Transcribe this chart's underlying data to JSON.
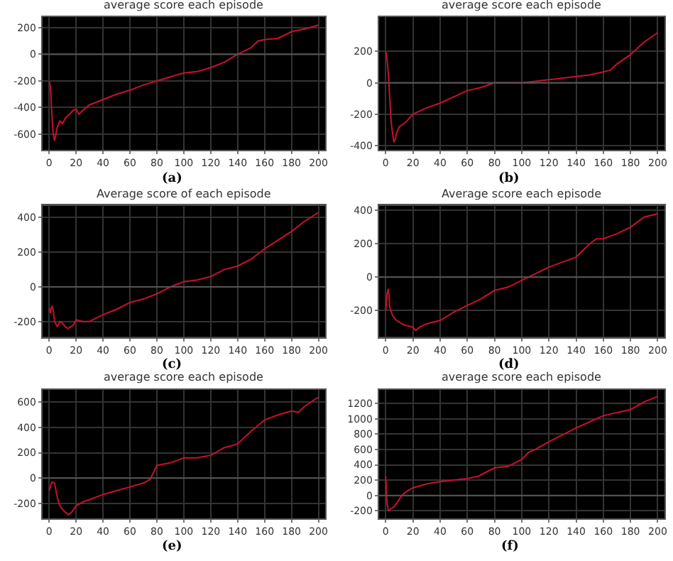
{
  "chart_data": [
    {
      "type": "line",
      "title": "average score each episode",
      "annotations": [
        "(a)"
      ],
      "x": [
        0,
        1,
        2,
        3,
        4,
        5,
        6,
        8,
        10,
        12,
        15,
        18,
        20,
        22,
        25,
        30,
        40,
        50,
        60,
        70,
        80,
        90,
        100,
        110,
        120,
        130,
        140,
        150,
        155,
        160,
        170,
        180,
        190,
        200
      ],
      "series": [
        {
          "color": "#c8102e",
          "values": [
            -200,
            -250,
            -450,
            -600,
            -650,
            -600,
            -550,
            -500,
            -520,
            -480,
            -450,
            -420,
            -410,
            -450,
            -420,
            -380,
            -340,
            -300,
            -270,
            -230,
            -200,
            -170,
            -140,
            -130,
            -100,
            -60,
            0,
            50,
            100,
            110,
            120,
            170,
            190,
            220
          ]
        }
      ],
      "xlim": [
        -5,
        205
      ],
      "ylim": [
        -720,
        280
      ],
      "xticks": [
        0,
        20,
        40,
        60,
        80,
        100,
        120,
        140,
        160,
        180,
        200
      ],
      "yticks": [
        -600,
        -400,
        -200,
        0,
        200
      ],
      "grid": true,
      "ref_lines": [
        {
          "axis": "y",
          "value": 0,
          "color": "#555555"
        }
      ]
    },
    {
      "type": "line",
      "title": "average score each episode",
      "annotations": [
        "(b)"
      ],
      "x": [
        0,
        1,
        2,
        3,
        4,
        5,
        6,
        7,
        8,
        10,
        15,
        20,
        25,
        30,
        40,
        50,
        60,
        70,
        80,
        90,
        100,
        110,
        120,
        130,
        140,
        150,
        160,
        165,
        170,
        180,
        190,
        200
      ],
      "series": [
        {
          "color": "#c8102e",
          "values": [
            200,
            150,
            50,
            -100,
            -250,
            -320,
            -380,
            -360,
            -320,
            -280,
            -250,
            -200,
            -180,
            -160,
            -130,
            -90,
            -50,
            -30,
            0,
            0,
            0,
            10,
            20,
            30,
            40,
            50,
            70,
            80,
            120,
            180,
            260,
            320
          ]
        }
      ],
      "xlim": [
        -5,
        205
      ],
      "ylim": [
        -430,
        420
      ],
      "xticks": [
        0,
        20,
        40,
        60,
        80,
        100,
        120,
        140,
        160,
        180,
        200
      ],
      "yticks": [
        -400,
        -200,
        0,
        200
      ],
      "grid": true,
      "ref_lines": [
        {
          "axis": "y",
          "value": 0,
          "color": "#555555"
        }
      ]
    },
    {
      "type": "line",
      "title": "Average score of each episode",
      "annotations": [
        "(c)"
      ],
      "x": [
        0,
        1,
        2,
        3,
        4,
        6,
        8,
        10,
        12,
        14,
        18,
        20,
        25,
        30,
        35,
        40,
        50,
        60,
        70,
        80,
        90,
        100,
        110,
        120,
        130,
        140,
        150,
        160,
        170,
        180,
        190,
        200
      ],
      "series": [
        {
          "color": "#c8102e",
          "values": [
            -120,
            -150,
            -110,
            -130,
            -200,
            -230,
            -200,
            -210,
            -230,
            -240,
            -220,
            -190,
            -200,
            -200,
            -180,
            -160,
            -130,
            -90,
            -70,
            -40,
            0,
            30,
            40,
            60,
            100,
            120,
            160,
            220,
            270,
            320,
            380,
            430
          ]
        }
      ],
      "xlim": [
        -5,
        205
      ],
      "ylim": [
        -290,
        470
      ],
      "xticks": [
        0,
        20,
        40,
        60,
        80,
        100,
        120,
        140,
        160,
        180,
        200
      ],
      "yticks": [
        -200,
        0,
        200,
        400
      ],
      "grid": true,
      "ref_lines": [
        {
          "axis": "y",
          "value": 0,
          "color": "#555555"
        }
      ]
    },
    {
      "type": "line",
      "title": "Average score each episode",
      "annotations": [
        "(d)"
      ],
      "x": [
        0,
        1,
        2,
        3,
        5,
        8,
        10,
        12,
        15,
        20,
        22,
        25,
        30,
        40,
        50,
        60,
        70,
        80,
        90,
        100,
        110,
        120,
        130,
        140,
        150,
        155,
        160,
        170,
        180,
        190,
        200
      ],
      "series": [
        {
          "color": "#c8102e",
          "values": [
            -200,
            -100,
            -70,
            -180,
            -230,
            -260,
            -270,
            -280,
            -290,
            -300,
            -320,
            -300,
            -280,
            -260,
            -210,
            -170,
            -130,
            -80,
            -60,
            -20,
            20,
            60,
            90,
            120,
            200,
            230,
            230,
            260,
            300,
            360,
            380
          ]
        }
      ],
      "xlim": [
        -5,
        205
      ],
      "ylim": [
        -360,
        430
      ],
      "xticks": [
        0,
        20,
        40,
        60,
        80,
        100,
        120,
        140,
        160,
        180,
        200
      ],
      "yticks": [
        -200,
        0,
        200,
        400
      ],
      "grid": true,
      "ref_lines": [
        {
          "axis": "y",
          "value": 0,
          "color": "#555555"
        }
      ]
    },
    {
      "type": "line",
      "title": "average score each episode",
      "annotations": [
        "(e)"
      ],
      "x": [
        0,
        2,
        4,
        6,
        8,
        10,
        14,
        16,
        20,
        25,
        30,
        40,
        50,
        60,
        70,
        75,
        80,
        90,
        100,
        110,
        120,
        130,
        140,
        150,
        160,
        170,
        180,
        185,
        190,
        200
      ],
      "series": [
        {
          "color": "#c8102e",
          "values": [
            -100,
            -30,
            -40,
            -150,
            -220,
            -250,
            -290,
            -280,
            -220,
            -190,
            -170,
            -130,
            -100,
            -70,
            -40,
            -10,
            100,
            120,
            160,
            160,
            180,
            240,
            270,
            370,
            460,
            500,
            530,
            520,
            570,
            640
          ]
        }
      ],
      "xlim": [
        -5,
        205
      ],
      "ylim": [
        -320,
        700
      ],
      "xticks": [
        0,
        20,
        40,
        60,
        80,
        100,
        120,
        140,
        160,
        180,
        200
      ],
      "yticks": [
        -200,
        0,
        200,
        400,
        600
      ],
      "grid": true,
      "ref_lines": [
        {
          "axis": "y",
          "value": 0,
          "color": "#555555"
        }
      ]
    },
    {
      "type": "line",
      "title": "average score each episode",
      "annotations": [
        "(f)"
      ],
      "x": [
        0,
        1,
        2,
        4,
        6,
        10,
        12,
        15,
        20,
        30,
        40,
        50,
        60,
        68,
        80,
        90,
        100,
        105,
        110,
        120,
        130,
        140,
        150,
        160,
        170,
        180,
        190,
        200
      ],
      "series": [
        {
          "color": "#c8102e",
          "values": [
            250,
            -100,
            -200,
            -170,
            -150,
            -50,
            0,
            50,
            100,
            150,
            180,
            200,
            220,
            250,
            360,
            380,
            470,
            560,
            600,
            700,
            790,
            880,
            960,
            1040,
            1080,
            1120,
            1220,
            1290
          ]
        }
      ],
      "xlim": [
        -5,
        205
      ],
      "ylim": [
        -300,
        1380
      ],
      "xticks": [
        0,
        20,
        40,
        60,
        80,
        100,
        120,
        140,
        160,
        180,
        200
      ],
      "yticks": [
        -200,
        0,
        200,
        400,
        600,
        800,
        1000,
        1200
      ],
      "grid": true,
      "ref_lines": [
        {
          "axis": "y",
          "value": 0,
          "color": "#555555"
        }
      ]
    }
  ]
}
